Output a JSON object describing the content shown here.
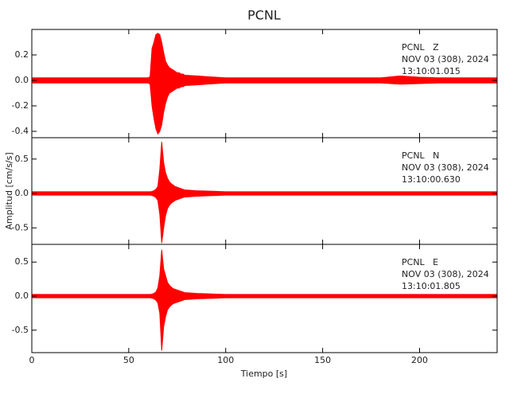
{
  "chart_data": [
    {
      "type": "range",
      "title": "PCNL",
      "color": "#ff0000",
      "annotations": [
        "PCNL   Z",
        "NOV 03 (308), 2024",
        "13:10:01.015"
      ],
      "xlim": [
        0,
        240
      ],
      "ylim": [
        -0.45,
        0.4
      ],
      "yticks": [
        -0.4,
        -0.2,
        {
          "value": 0,
          "label": "0.0"
        },
        0.2
      ],
      "x": [
        0,
        10,
        20,
        30,
        40,
        50,
        60,
        61,
        62,
        63,
        64,
        65,
        66,
        67,
        68,
        69,
        70,
        71,
        72,
        73,
        74,
        75,
        76,
        77,
        78,
        79,
        80,
        85,
        90,
        95,
        100,
        110,
        120,
        130,
        140,
        150,
        160,
        170,
        180,
        190,
        200,
        210,
        220,
        230,
        240
      ],
      "high": [
        0.02,
        0.02,
        0.02,
        0.02,
        0.02,
        0.02,
        0.02,
        0.03,
        0.25,
        0.3,
        0.36,
        0.37,
        0.36,
        0.3,
        0.22,
        0.15,
        0.12,
        0.1,
        0.09,
        0.08,
        0.07,
        0.06,
        0.06,
        0.05,
        0.05,
        0.04,
        0.04,
        0.035,
        0.03,
        0.025,
        0.02,
        0.02,
        0.02,
        0.02,
        0.02,
        0.02,
        0.02,
        0.02,
        0.02,
        0.035,
        0.025,
        0.02,
        0.02,
        0.02,
        0.02
      ],
      "low": [
        -0.02,
        -0.02,
        -0.02,
        -0.02,
        -0.02,
        -0.02,
        -0.02,
        -0.03,
        -0.2,
        -0.3,
        -0.38,
        -0.42,
        -0.4,
        -0.35,
        -0.25,
        -0.18,
        -0.13,
        -0.1,
        -0.09,
        -0.08,
        -0.07,
        -0.06,
        -0.06,
        -0.05,
        -0.05,
        -0.04,
        -0.04,
        -0.035,
        -0.03,
        -0.025,
        -0.02,
        -0.02,
        -0.02,
        -0.02,
        -0.02,
        -0.02,
        -0.02,
        -0.02,
        -0.02,
        -0.03,
        -0.025,
        -0.02,
        -0.02,
        -0.02,
        -0.02
      ]
    },
    {
      "type": "range",
      "ylabel": "Amplitud [cm/s/s]",
      "color": "#ff0000",
      "annotations": [
        "PCNL   N",
        "NOV 03 (308), 2024",
        "13:10:00.630"
      ],
      "xlim": [
        0,
        240
      ],
      "ylim": [
        -0.74,
        0.81
      ],
      "yticks": [
        -0.5,
        {
          "value": 0,
          "label": "0.0"
        },
        0.5
      ],
      "x": [
        0,
        10,
        20,
        30,
        40,
        50,
        60,
        61,
        62,
        63,
        64,
        65,
        66,
        67,
        68,
        69,
        70,
        71,
        72,
        73,
        74,
        75,
        76,
        77,
        78,
        79,
        80,
        85,
        90,
        95,
        100,
        110,
        120,
        130,
        140,
        150,
        160,
        170,
        180,
        190,
        200,
        210,
        220,
        230,
        240
      ],
      "high": [
        0.025,
        0.025,
        0.025,
        0.025,
        0.025,
        0.025,
        0.025,
        0.025,
        0.03,
        0.04,
        0.06,
        0.1,
        0.35,
        0.75,
        0.45,
        0.3,
        0.22,
        0.17,
        0.14,
        0.12,
        0.1,
        0.09,
        0.08,
        0.07,
        0.06,
        0.05,
        0.05,
        0.04,
        0.035,
        0.03,
        0.025,
        0.025,
        0.025,
        0.025,
        0.025,
        0.025,
        0.025,
        0.025,
        0.025,
        0.025,
        0.025,
        0.025,
        0.025,
        0.025,
        0.025
      ],
      "low": [
        -0.025,
        -0.025,
        -0.025,
        -0.025,
        -0.025,
        -0.025,
        -0.025,
        -0.025,
        -0.03,
        -0.04,
        -0.06,
        -0.1,
        -0.3,
        -0.72,
        -0.5,
        -0.32,
        -0.22,
        -0.17,
        -0.14,
        -0.12,
        -0.1,
        -0.09,
        -0.08,
        -0.07,
        -0.06,
        -0.05,
        -0.05,
        -0.04,
        -0.035,
        -0.03,
        -0.025,
        -0.025,
        -0.025,
        -0.025,
        -0.025,
        -0.025,
        -0.025,
        -0.025,
        -0.025,
        -0.025,
        -0.025,
        -0.025,
        -0.025,
        -0.025,
        -0.025
      ]
    },
    {
      "type": "range",
      "xlabel": "Tiempo [s]",
      "color": "#ff0000",
      "annotations": [
        "PCNL   E",
        "NOV 03 (308), 2024",
        "13:10:01.805"
      ],
      "xlim": [
        0,
        240
      ],
      "ylim": [
        -0.83,
        0.76
      ],
      "xticks": [
        0,
        50,
        100,
        150,
        200
      ],
      "yticks": [
        -0.5,
        {
          "value": 0,
          "label": "0.0"
        },
        0.5
      ],
      "x": [
        0,
        10,
        20,
        30,
        40,
        50,
        60,
        61,
        62,
        63,
        64,
        65,
        66,
        67,
        68,
        69,
        70,
        71,
        72,
        73,
        74,
        75,
        76,
        77,
        78,
        79,
        80,
        85,
        90,
        95,
        100,
        110,
        120,
        130,
        140,
        150,
        160,
        170,
        180,
        190,
        200,
        210,
        220,
        230,
        240
      ],
      "high": [
        0.025,
        0.025,
        0.025,
        0.025,
        0.025,
        0.025,
        0.025,
        0.025,
        0.03,
        0.04,
        0.06,
        0.12,
        0.3,
        0.68,
        0.4,
        0.3,
        0.2,
        0.16,
        0.13,
        0.11,
        0.1,
        0.09,
        0.08,
        0.07,
        0.06,
        0.05,
        0.05,
        0.04,
        0.035,
        0.03,
        0.025,
        0.025,
        0.025,
        0.025,
        0.025,
        0.025,
        0.025,
        0.025,
        0.025,
        0.025,
        0.025,
        0.025,
        0.025,
        0.025,
        0.025
      ],
      "low": [
        -0.025,
        -0.025,
        -0.025,
        -0.025,
        -0.025,
        -0.025,
        -0.025,
        -0.025,
        -0.03,
        -0.04,
        -0.06,
        -0.1,
        -0.25,
        -0.8,
        -0.45,
        -0.3,
        -0.2,
        -0.16,
        -0.13,
        -0.11,
        -0.1,
        -0.09,
        -0.08,
        -0.07,
        -0.06,
        -0.05,
        -0.05,
        -0.04,
        -0.035,
        -0.03,
        -0.025,
        -0.025,
        -0.025,
        -0.025,
        -0.025,
        -0.025,
        -0.025,
        -0.025,
        -0.025,
        -0.025,
        -0.025,
        -0.025,
        -0.025,
        -0.025,
        -0.025
      ]
    }
  ]
}
